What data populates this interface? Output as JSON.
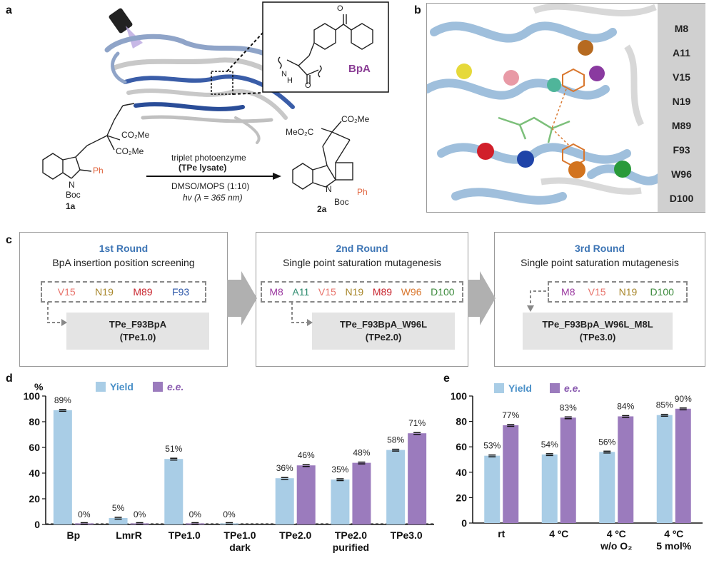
{
  "panels": {
    "a": "a",
    "b": "b",
    "c": "c",
    "d": "d",
    "e": "e"
  },
  "panel_a": {
    "bpa_label": "BpA",
    "reactant_code": "1a",
    "product_code": "2a",
    "substituents": {
      "co2me": "CO₂Me",
      "meo2c": "MeO₂C",
      "ph": "Ph",
      "boc": "Boc",
      "n": "N",
      "h": "H"
    },
    "conditions": {
      "line1": "triplet photoenzyme",
      "line2": "(TPe lysate)",
      "line3": "DMSO/MOPS (1:10)",
      "line4": "hv (λ = 365 nm)"
    }
  },
  "panel_b": {
    "residues": [
      {
        "label": "M8",
        "color": "#9b3aa0"
      },
      {
        "label": "A11",
        "color": "#2e8b6f"
      },
      {
        "label": "V15",
        "color": "#e8736b"
      },
      {
        "label": "N19",
        "color": "#a8862a"
      },
      {
        "label": "M89",
        "color": "#c8242d"
      },
      {
        "label": "F93",
        "color": "#2a55a8"
      },
      {
        "label": "W96",
        "color": "#d9772e"
      },
      {
        "label": "D100",
        "color": "#3c8a3c"
      }
    ]
  },
  "panel_c": {
    "rounds": [
      {
        "title": "1st Round",
        "subtitle": "BpA insertion position screening",
        "positions": [
          "V15",
          "N19",
          "M89",
          "F93"
        ],
        "result": "TPe_F93BpA",
        "result_name": "(TPe1.0)"
      },
      {
        "title": "2nd Round",
        "subtitle": "Single point saturation mutagenesis",
        "positions": [
          "M8",
          "A11",
          "V15",
          "N19",
          "M89",
          "W96",
          "D100"
        ],
        "result": "TPe_F93BpA_W96L",
        "result_name": "(TPe2.0)"
      },
      {
        "title": "3rd Round",
        "subtitle": "Single point saturation mutagenesis",
        "positions": [
          "M8",
          "V15",
          "N19",
          "D100"
        ],
        "result": "TPe_F93BpA_W96L_M8L",
        "result_name": "(TPe3.0)"
      }
    ]
  },
  "colors": {
    "yield": "#a9cde6",
    "ee": "#9b7bbd",
    "round_title": "#3d75b5"
  },
  "chart_data": [
    {
      "type": "bar",
      "panel": "d",
      "ylabel": "%",
      "ylim": [
        0,
        100
      ],
      "yticks": [
        0,
        20,
        40,
        60,
        80,
        100
      ],
      "legend": [
        "Yield",
        "e.e."
      ],
      "categories": [
        [
          "Bp"
        ],
        [
          "LmrR"
        ],
        [
          "TPe1.0"
        ],
        [
          "TPe1.0",
          "dark"
        ],
        [
          "TPe2.0"
        ],
        [
          "TPe2.0",
          "purified"
        ],
        [
          "TPe3.0"
        ]
      ],
      "series": [
        {
          "name": "Yield",
          "values": [
            89,
            5,
            51,
            0,
            36,
            35,
            58
          ],
          "labels": [
            "89%",
            "5%",
            "51%",
            "0%",
            "36%",
            "35%",
            "58%"
          ]
        },
        {
          "name": "e.e.",
          "values": [
            0,
            0,
            0,
            null,
            46,
            48,
            71
          ],
          "labels": [
            "0%",
            "0%",
            "0%",
            "",
            "46%",
            "48%",
            "71%"
          ]
        }
      ]
    },
    {
      "type": "bar",
      "panel": "e",
      "ylim": [
        0,
        100
      ],
      "yticks": [
        0,
        20,
        40,
        60,
        80,
        100
      ],
      "legend": [
        "Yield",
        "e.e."
      ],
      "categories": [
        [
          "rt"
        ],
        [
          "4 ºC"
        ],
        [
          "4 ºC",
          "w/o O₂"
        ],
        [
          "4 ºC",
          "5 mol%"
        ]
      ],
      "series": [
        {
          "name": "Yield",
          "values": [
            53,
            54,
            56,
            85
          ],
          "labels": [
            "53%",
            "54%",
            "56%",
            "85%"
          ]
        },
        {
          "name": "e.e.",
          "values": [
            77,
            83,
            84,
            90
          ],
          "labels": [
            "77%",
            "83%",
            "84%",
            "90%"
          ]
        }
      ]
    }
  ]
}
